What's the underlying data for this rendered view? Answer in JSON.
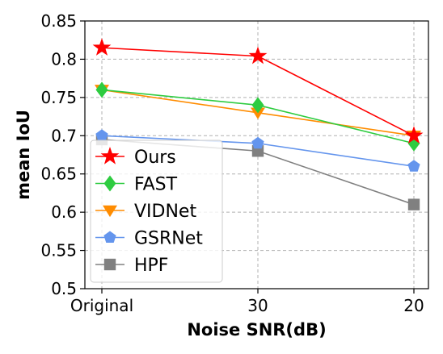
{
  "chart_data": {
    "type": "line",
    "categories": [
      "Original",
      "30",
      "20"
    ],
    "xlabel": "Noise SNR(dB)",
    "ylabel": "mean IoU",
    "ylim": [
      0.5,
      0.85
    ],
    "yticks": [
      "0.5",
      "0.55",
      "0.6",
      "0.65",
      "0.7",
      "0.75",
      "0.8",
      "0.85"
    ],
    "grid": true,
    "legend_position": "lower-left",
    "series": [
      {
        "name": "Ours",
        "values": [
          0.815,
          0.804,
          0.7
        ],
        "color": "#ff0000",
        "marker": "star"
      },
      {
        "name": "FAST",
        "values": [
          0.76,
          0.74,
          0.69
        ],
        "color": "#2ecc40",
        "marker": "diamond"
      },
      {
        "name": "VIDNet",
        "values": [
          0.76,
          0.73,
          0.7
        ],
        "color": "#ff8c00",
        "marker": "triangle-down"
      },
      {
        "name": "GSRNet",
        "values": [
          0.7,
          0.69,
          0.66
        ],
        "color": "#6495ed",
        "marker": "pentagon"
      },
      {
        "name": "HPF",
        "values": [
          0.695,
          0.68,
          0.61
        ],
        "color": "#808080",
        "marker": "square"
      }
    ]
  }
}
